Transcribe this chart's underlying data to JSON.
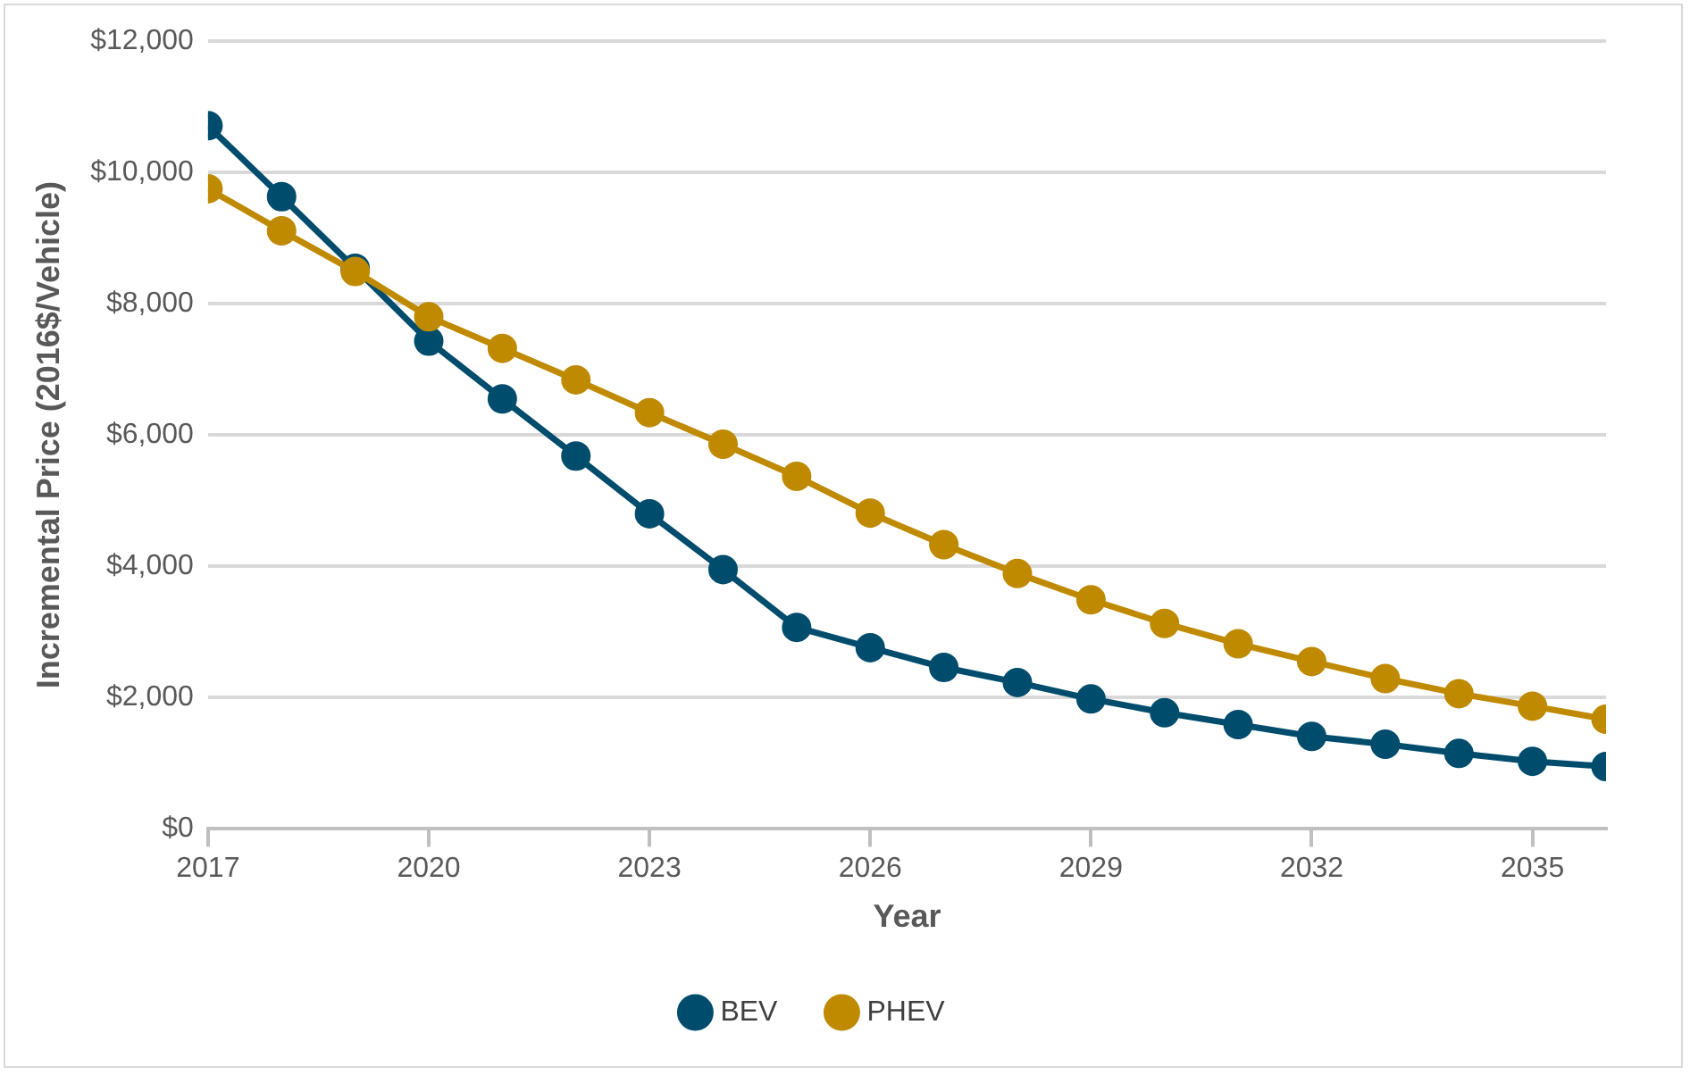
{
  "chart_data": {
    "type": "line",
    "xlabel": "Year",
    "ylabel": "Incremental Price (2016$/Vehicle)",
    "x": [
      2017,
      2018,
      2019,
      2020,
      2021,
      2022,
      2023,
      2024,
      2025,
      2026,
      2027,
      2028,
      2029,
      2030,
      2031,
      2032,
      2033,
      2034,
      2035,
      2036
    ],
    "series": [
      {
        "name": "BEV",
        "color": "#004c6d",
        "values": [
          10710,
          9630,
          8540,
          7430,
          6550,
          5680,
          4800,
          3950,
          3070,
          2760,
          2460,
          2230,
          1980,
          1770,
          1590,
          1410,
          1290,
          1150,
          1030,
          950
        ]
      },
      {
        "name": "PHEV",
        "color": "#bf8a00",
        "values": [
          9750,
          9110,
          8490,
          7800,
          7320,
          6840,
          6340,
          5860,
          5370,
          4810,
          4330,
          3890,
          3490,
          3130,
          2820,
          2550,
          2290,
          2060,
          1870,
          1670
        ]
      }
    ],
    "xlim": [
      2017,
      2036
    ],
    "xticks": [
      2017,
      2020,
      2023,
      2026,
      2029,
      2032,
      2035
    ],
    "ylim": [
      0,
      12000
    ],
    "yticks": [
      {
        "value": 0,
        "label": "$0"
      },
      {
        "value": 2000,
        "label": "$2,000"
      },
      {
        "value": 4000,
        "label": "$4,000"
      },
      {
        "value": 6000,
        "label": "$6,000"
      },
      {
        "value": 8000,
        "label": "$8,000"
      },
      {
        "value": 10000,
        "label": "$10,000"
      },
      {
        "value": 12000,
        "label": "$12,000"
      }
    ],
    "grid": "y",
    "legend": "bottom",
    "marker": "circle",
    "line_style": "solid"
  }
}
